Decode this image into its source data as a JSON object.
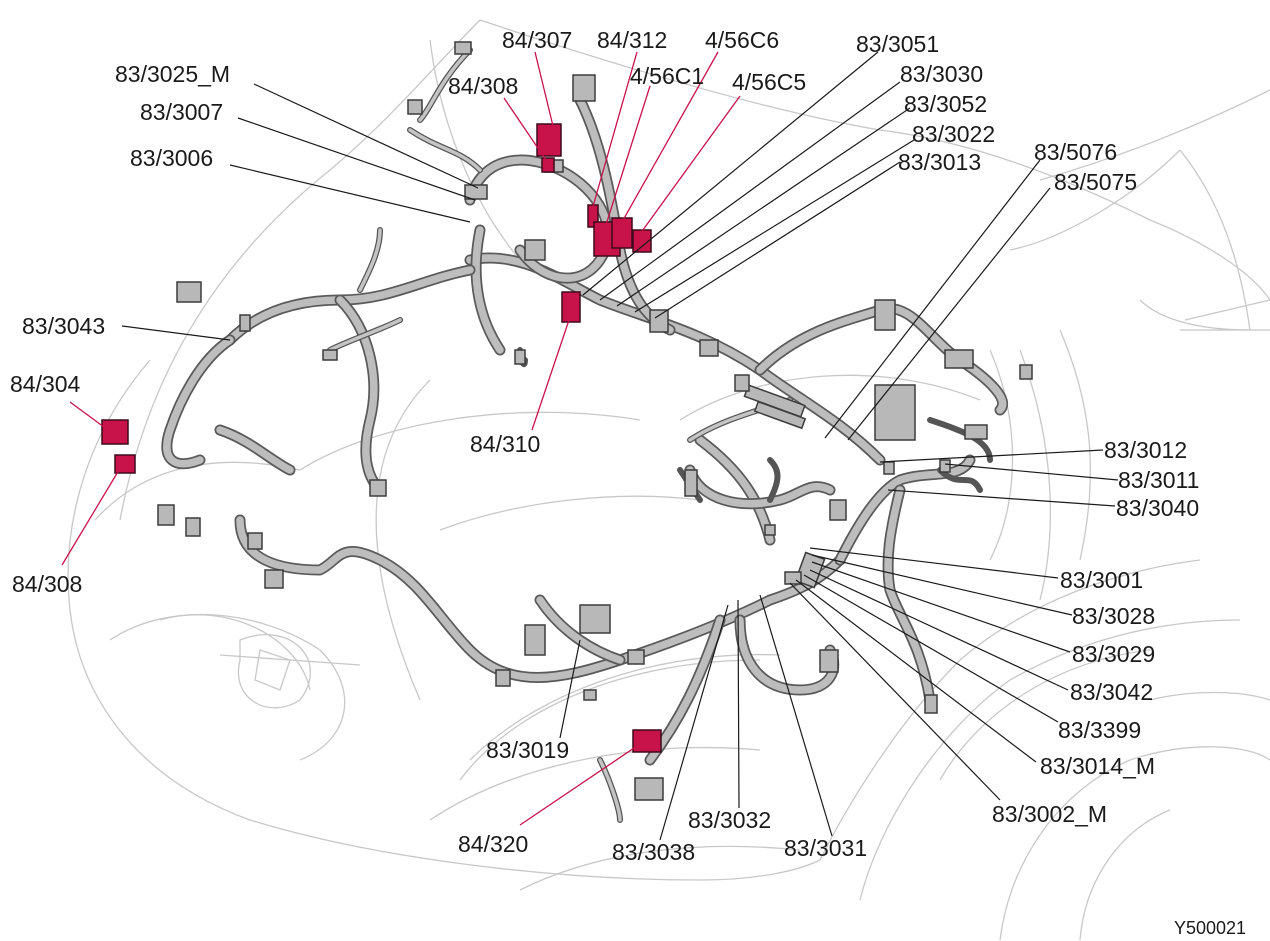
{
  "diagram": {
    "figure_id": "Y500021",
    "highlight_color": "#c8124a",
    "labels": {
      "l_84_307": "84/307",
      "l_84_312": "84/312",
      "l_4_56C6": "4/56C6",
      "l_83_3051": "83/3051",
      "l_83_3025_M": "83/3025_M",
      "l_84_308_top": "84/308",
      "l_4_56C1": "4/56C1",
      "l_4_56C5": "4/56C5",
      "l_83_3030": "83/3030",
      "l_83_3007": "83/3007",
      "l_83_3052": "83/3052",
      "l_83_3022": "83/3022",
      "l_83_3006": "83/3006",
      "l_83_3013": "83/3013",
      "l_83_5076": "83/5076",
      "l_83_5075": "83/5075",
      "l_83_3043": "83/3043",
      "l_84_304": "84/304",
      "l_84_310": "84/310",
      "l_83_3012": "83/3012",
      "l_83_3011": "83/3011",
      "l_83_3040": "83/3040",
      "l_84_308_left": "84/308",
      "l_83_3001": "83/3001",
      "l_83_3028": "83/3028",
      "l_83_3029": "83/3029",
      "l_83_3042": "83/3042",
      "l_83_3399": "83/3399",
      "l_83_3019": "83/3019",
      "l_83_3014_M": "83/3014_M",
      "l_83_3032": "83/3032",
      "l_83_3002_M": "83/3002_M",
      "l_84_320": "84/320",
      "l_83_3038": "83/3038",
      "l_83_3031": "83/3031"
    }
  }
}
